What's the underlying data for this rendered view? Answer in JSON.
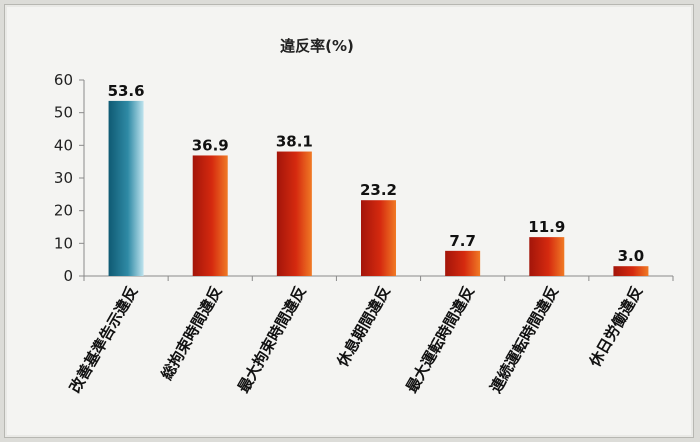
{
  "chart_data": {
    "type": "bar",
    "title": "違反率(%)",
    "categories": [
      "改善基準告示違反",
      "総拘束時間違反",
      "最大拘束時間違反",
      "休息期間違反",
      "最大運転時間違反",
      "連続運転時間違反",
      "休日労働違反"
    ],
    "values": [
      53.6,
      36.9,
      38.1,
      23.2,
      7.7,
      11.9,
      3.0
    ],
    "value_labels": [
      "53.6",
      "36.9",
      "38.1",
      "23.2",
      "7.7",
      "11.9",
      "3.0"
    ],
    "ylim": [
      0,
      60
    ],
    "yticks": [
      0,
      10,
      20,
      30,
      40,
      50,
      60
    ],
    "grid": false,
    "legend": "none",
    "colors": {
      "first_bar": "#1e6f86",
      "bars": "#c8200e",
      "axis": "#8a8a8a"
    }
  }
}
